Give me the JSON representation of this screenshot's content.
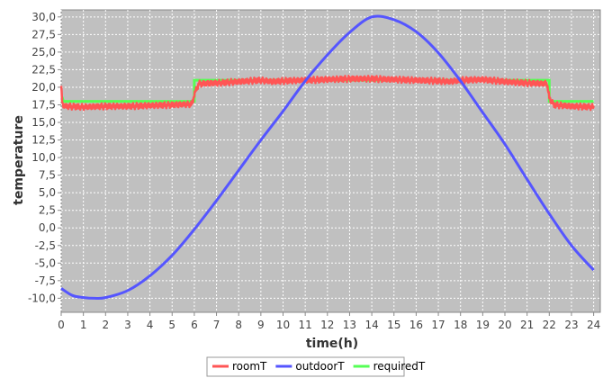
{
  "chart_data": {
    "type": "line",
    "title": "",
    "xlabel": "time(h)",
    "ylabel": "temperature",
    "xlim": [
      0,
      24.3
    ],
    "ylim": [
      -12.0,
      31.0
    ],
    "x_ticks": [
      0,
      1,
      2,
      3,
      4,
      5,
      6,
      7,
      8,
      9,
      10,
      11,
      12,
      13,
      14,
      15,
      16,
      17,
      18,
      19,
      20,
      21,
      22,
      23,
      24
    ],
    "y_ticks": [
      -10.0,
      -7.5,
      -5.0,
      -2.5,
      0.0,
      2.5,
      5.0,
      7.5,
      10.0,
      12.5,
      15.0,
      17.5,
      20.0,
      22.5,
      25.0,
      27.5,
      30.0
    ],
    "y_tick_labels": [
      "-10,0",
      "-7,5",
      "-5,0",
      "-2,5",
      "0,0",
      "2,5",
      "5,0",
      "7,5",
      "10,0",
      "12,5",
      "15,0",
      "17,5",
      "20,0",
      "22,5",
      "25,0",
      "27,5",
      "30,0"
    ],
    "grid": true,
    "legend_position": "bottom",
    "plot_background": "#c0c0c0",
    "series": [
      {
        "name": "roomT",
        "color": "#ff5555",
        "x": [
          0,
          0.05,
          0.2,
          1,
          2,
          3,
          4,
          5,
          5.9,
          6.0,
          6.2,
          7,
          8,
          9,
          9.5,
          10,
          11,
          12,
          13,
          14,
          15,
          16,
          17,
          17.5,
          18,
          19,
          20,
          21,
          21.9,
          22.0,
          22.2,
          23,
          24
        ],
        "y": [
          20.2,
          17.5,
          17.3,
          17.2,
          17.3,
          17.3,
          17.4,
          17.5,
          17.6,
          19.0,
          20.5,
          20.6,
          20.8,
          21.0,
          20.8,
          20.9,
          21.0,
          21.1,
          21.2,
          21.2,
          21.1,
          21.0,
          20.9,
          20.8,
          21.0,
          21.1,
          20.8,
          20.6,
          20.5,
          18.5,
          17.5,
          17.3,
          17.2
        ],
        "noise_amplitude": 0.45
      },
      {
        "name": "outdoorT",
        "color": "#5555ff",
        "x": [
          0,
          0.5,
          1,
          1.5,
          2,
          3,
          4,
          5,
          6,
          7,
          8,
          9,
          10,
          11,
          12,
          13,
          14,
          15,
          16,
          17,
          18,
          19,
          20,
          21,
          22,
          23,
          24
        ],
        "y": [
          -8.6,
          -9.6,
          -9.9,
          -10.0,
          -9.9,
          -8.9,
          -6.8,
          -3.9,
          -0.2,
          3.9,
          8.2,
          12.5,
          16.6,
          20.9,
          24.6,
          27.8,
          30.0,
          29.6,
          27.9,
          24.9,
          20.9,
          16.4,
          11.9,
          6.9,
          2.0,
          -2.5,
          -6.0
        ]
      },
      {
        "name": "requiredT",
        "color": "#55ff55",
        "x": [
          0,
          0.05,
          0.1,
          6.0,
          6.0,
          22.0,
          22.0,
          24
        ],
        "y": [
          18.5,
          18.5,
          18.0,
          18.0,
          21.0,
          21.0,
          18.0,
          18.0
        ]
      }
    ]
  }
}
